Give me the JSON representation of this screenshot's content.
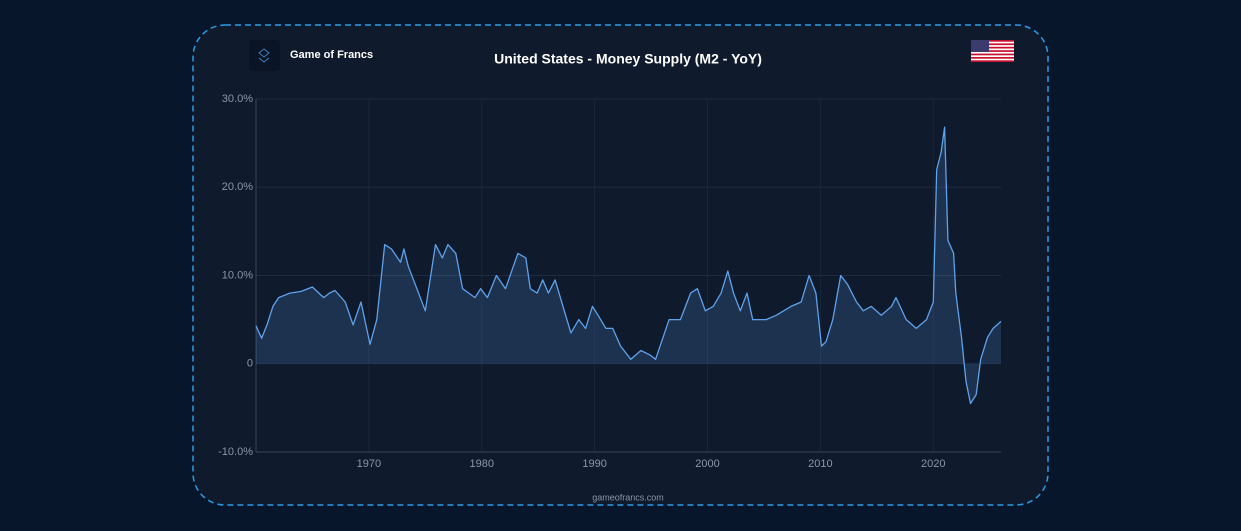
{
  "brand": "Game of Francs",
  "footer": "gameofrancs.com",
  "chart_data": {
    "type": "area",
    "title": "United States - Money Supply (M2 - YoY)",
    "x": [
      1960,
      1960.5,
      1961,
      1961.5,
      1962,
      1963,
      1964,
      1965,
      1966,
      1966.5,
      1967,
      1967.9,
      1968.6,
      1969.3,
      1970.1,
      1970.7,
      1971.4,
      1972,
      1972.8,
      1973.1,
      1973.5,
      1974.1,
      1975,
      1975.9,
      1976.5,
      1977,
      1977.7,
      1978.3,
      1979.4,
      1979.9,
      1980.5,
      1981.3,
      1982.1,
      1983.2,
      1983.9,
      1984.3,
      1984.9,
      1985.4,
      1985.9,
      1986.5,
      1987.2,
      1987.9,
      1988.6,
      1989.2,
      1989.8,
      1990.3,
      1991,
      1991.6,
      1992.3,
      1993.2,
      1994.1,
      1994.9,
      1995.4,
      1995.8,
      1996.6,
      1997.6,
      1998.5,
      1999.1,
      1999.8,
      2000.5,
      2001.2,
      2001.8,
      2002.3,
      2002.9,
      2003.5,
      2004,
      2005.2,
      2006.1,
      2007.4,
      2008.3,
      2009,
      2009.6,
      2010.1,
      2010.5,
      2011.1,
      2011.8,
      2012.4,
      2013.2,
      2013.8,
      2014.5,
      2015.4,
      2016.3,
      2016.7,
      2017.6,
      2018.5,
      2019.4,
      2020,
      2020.3,
      2020.7,
      2021,
      2021.3,
      2021.8,
      2022,
      2022.5,
      2022.9,
      2023.3,
      2023.8,
      2024.2,
      2024.8,
      2025.3,
      2026
    ],
    "values": [
      4.3,
      2.9,
      4.5,
      6.5,
      7.5,
      8.0,
      8.2,
      8.7,
      7.5,
      8.0,
      8.3,
      7.0,
      4.4,
      7.0,
      2.2,
      5.0,
      13.5,
      13.0,
      11.5,
      13.0,
      11.0,
      9.0,
      6.0,
      13.5,
      12.0,
      13.5,
      12.5,
      8.5,
      7.5,
      8.5,
      7.5,
      10.0,
      8.5,
      12.5,
      12.0,
      8.5,
      8.0,
      9.5,
      8.0,
      9.5,
      6.5,
      3.5,
      5.0,
      4.0,
      6.5,
      5.5,
      4.0,
      4.0,
      2.0,
      0.5,
      1.5,
      1.0,
      0.5,
      2.0,
      5.0,
      5.0,
      8.0,
      8.5,
      6.0,
      6.5,
      8.0,
      10.5,
      8.0,
      6.0,
      8.0,
      5.0,
      5.0,
      5.5,
      6.5,
      7.0,
      10.0,
      8.0,
      2.0,
      2.5,
      5.0,
      10.0,
      9.0,
      7.0,
      6.0,
      6.5,
      5.5,
      6.5,
      7.5,
      5.0,
      4.0,
      5.0,
      7.0,
      22.0,
      24.0,
      26.8,
      14.0,
      12.5,
      8.0,
      3.0,
      -2.0,
      -4.5,
      -3.5,
      0.5,
      3.0,
      4.0,
      4.8
    ],
    "color": "#5fa2ec",
    "xlim": [
      1960,
      2026
    ],
    "xticks": [
      1970,
      1980,
      1990,
      2000,
      2010,
      2020
    ],
    "ylim": [
      -10,
      30
    ],
    "yticks": [
      {
        "value": -10,
        "label": "-10.0%"
      },
      0,
      {
        "value": 10,
        "label": "10.0%"
      },
      {
        "value": 20,
        "label": "20.0%"
      },
      {
        "value": 30,
        "label": "30.0%"
      }
    ],
    "grid": true
  }
}
